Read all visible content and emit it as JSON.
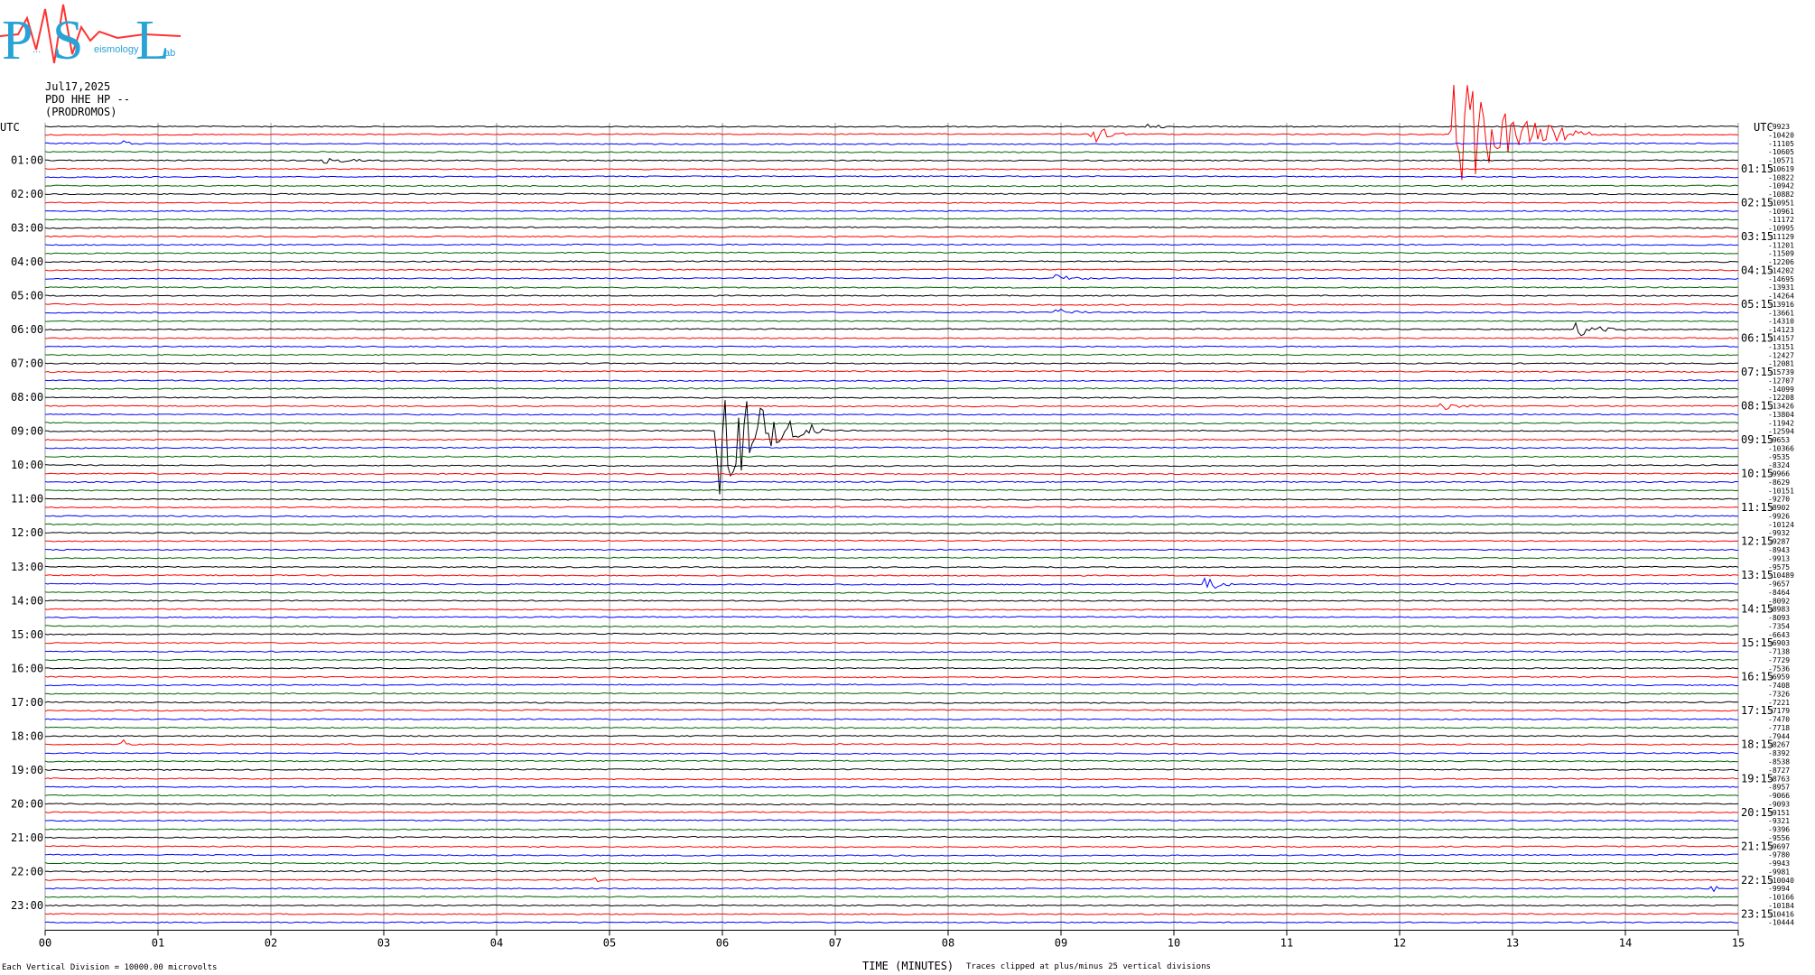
{
  "logo": {
    "letters": [
      "P",
      "S",
      "L"
    ],
    "words": [
      "...",
      "eismology",
      "ab"
    ]
  },
  "header": {
    "date": "Jul17,2025",
    "station": "PDO HHE HP --",
    "site": "(PRODROMOS)"
  },
  "utc_left": "UTC",
  "utc_right": "UTC",
  "footer": {
    "division": "Each Vertical Division = 10000.00 microvolts",
    "clip": "Traces clipped at plus/minus 25 vertical divisions",
    "xlabel": "TIME (MINUTES)"
  },
  "chart_data": {
    "type": "line",
    "title": "",
    "xlabel": "TIME (MINUTES)",
    "ylabel": "UTC",
    "xlim": [
      0,
      15
    ],
    "x_ticks": [
      "00",
      "01",
      "02",
      "03",
      "04",
      "05",
      "06",
      "07",
      "08",
      "09",
      "10",
      "11",
      "12",
      "13",
      "14",
      "15"
    ],
    "grid": true,
    "rows_per_hour": 4,
    "row_minutes": 15,
    "trace_colors": [
      "#000000",
      "#ff0000",
      "#0000ff",
      "#006400"
    ],
    "left_labels": [
      "01:00",
      "02:00",
      "03:00",
      "04:00",
      "05:00",
      "06:00",
      "07:00",
      "08:00",
      "09:00",
      "10:00",
      "11:00",
      "12:00",
      "13:00",
      "14:00",
      "15:00",
      "16:00",
      "17:00",
      "18:00",
      "19:00",
      "20:00",
      "21:00",
      "22:00",
      "23:00"
    ],
    "right_labels": [
      "01:15",
      "02:15",
      "03:15",
      "04:15",
      "05:15",
      "06:15",
      "07:15",
      "08:15",
      "09:15",
      "10:15",
      "11:15",
      "12:15",
      "13:15",
      "14:15",
      "15:15",
      "16:15",
      "17:15",
      "18:15",
      "19:15",
      "20:15",
      "21:15",
      "22:15",
      "23:15"
    ],
    "trace_offsets": [
      "-9923",
      "-10420",
      "-11105",
      "-10605",
      "-10571",
      "-10619",
      "-10822",
      "-10942",
      "-10882",
      "-10951",
      "-10961",
      "-11172",
      "-10995",
      "-11129",
      "-11201",
      "-11509",
      "-12206",
      "-14202",
      "-14695",
      "-13931",
      "-14264",
      "-13916",
      "-13661",
      "-14310",
      "-14123",
      "-14157",
      "-13151",
      "-12427",
      "-12081",
      "-15739",
      "-12707",
      "-14099",
      "-12208",
      "-13426",
      "-13804",
      "-11942",
      "-12594",
      "-9653",
      "-10366",
      "-9535",
      "-8324",
      "-9966",
      "-8629",
      "-10151",
      "-9270",
      "-8902",
      "-9926",
      "-10124",
      "-9932",
      "-9287",
      "-8943",
      "-9913",
      "-9575",
      "-10489",
      "-9657",
      "-8464",
      "-8092",
      "-8983",
      "-8093",
      "-7354",
      "-6643",
      "-6903",
      "-7138",
      "-7729",
      "-7536",
      "-6959",
      "-7408",
      "-7326",
      "-7221",
      "-7179",
      "-7470",
      "-7718",
      "-7944",
      "-8267",
      "-8392",
      "-8538",
      "-8727",
      "-8763",
      "-8957",
      "-9066",
      "-9093",
      "-9151",
      "-9321",
      "-9396",
      "-9556",
      "-9697",
      "-9780",
      "-9943",
      "-9981",
      "-10040",
      "-9994",
      "-10166",
      "-10184",
      "-10416",
      "-10444"
    ],
    "events": [
      {
        "row": 0,
        "minute": 9.8,
        "amp": 3,
        "width": 0.35
      },
      {
        "row": 1,
        "minute": 9.3,
        "amp": 14,
        "width": 0.3
      },
      {
        "row": 1,
        "minute": 12.5,
        "amp": 70,
        "width": 1.2
      },
      {
        "row": 2,
        "minute": 0.7,
        "amp": 3,
        "width": 0.3
      },
      {
        "row": 4,
        "minute": 2.5,
        "amp": 3,
        "width": 0.6
      },
      {
        "row": 22,
        "minute": 9.0,
        "amp": 4,
        "width": 0.4
      },
      {
        "row": 18,
        "minute": 9.0,
        "amp": 4,
        "width": 0.5
      },
      {
        "row": 24,
        "minute": 13.6,
        "amp": 8,
        "width": 0.6
      },
      {
        "row": 33,
        "minute": 12.4,
        "amp": 5,
        "width": 0.4
      },
      {
        "row": 36,
        "minute": 6.0,
        "amp": 75,
        "width": 0.9
      },
      {
        "row": 54,
        "minute": 10.3,
        "amp": 9,
        "width": 0.35
      },
      {
        "row": 73,
        "minute": 0.7,
        "amp": 6,
        "width": 0.3
      },
      {
        "row": 89,
        "minute": 4.9,
        "amp": 3,
        "width": 0.3
      },
      {
        "row": 90,
        "minute": 14.8,
        "amp": 3,
        "width": 0.2
      }
    ]
  }
}
